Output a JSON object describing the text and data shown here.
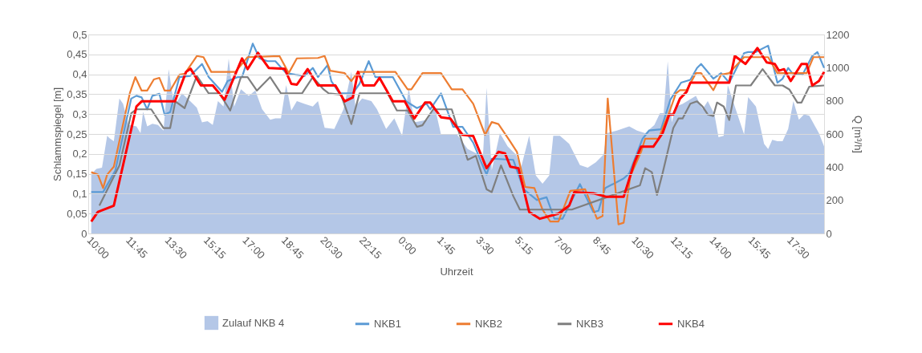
{
  "chart_data": {
    "type": "line",
    "xlabel": "Uhrzeit",
    "ylabel": "Schlammspiegel [m]",
    "y2label": "Q [m³/h]",
    "xlim": [
      "2000-01-01T10:00",
      "2000-01-02T19:06"
    ],
    "xticks": [
      {
        "value": "2000-01-01T10:00",
        "label": "10:00"
      },
      {
        "value": "2000-01-01T11:45",
        "label": "11:45"
      },
      {
        "value": "2000-01-01T13:30",
        "label": "13:30"
      },
      {
        "value": "2000-01-01T15:15",
        "label": "15:15"
      },
      {
        "value": "2000-01-01T17:00",
        "label": "17:00"
      },
      {
        "value": "2000-01-01T18:45",
        "label": "18:45"
      },
      {
        "value": "2000-01-01T20:30",
        "label": "20:30"
      },
      {
        "value": "2000-01-01T22:15",
        "label": "22:15"
      },
      {
        "value": "2000-01-02T00:00",
        "label": "0:00"
      },
      {
        "value": "2000-01-02T01:45",
        "label": "1:45"
      },
      {
        "value": "2000-01-02T03:30",
        "label": "3:30"
      },
      {
        "value": "2000-01-02T05:15",
        "label": "5:15"
      },
      {
        "value": "2000-01-02T07:00",
        "label": "7:00"
      },
      {
        "value": "2000-01-02T08:45",
        "label": "8:45"
      },
      {
        "value": "2000-01-02T10:30",
        "label": "10:30"
      },
      {
        "value": "2000-01-02T12:15",
        "label": "12:15"
      },
      {
        "value": "2000-01-02T14:00",
        "label": "14:00"
      },
      {
        "value": "2000-01-02T15:45",
        "label": "15:45"
      },
      {
        "value": "2000-01-02T17:30",
        "label": "17:30"
      }
    ],
    "ylim": [
      0,
      0.5
    ],
    "yticks": [
      0,
      {
        "value": 0.05,
        "label": "0,05"
      },
      {
        "value": 0.1,
        "label": "0,1"
      },
      {
        "value": 0.15,
        "label": "0,15"
      },
      {
        "value": 0.2,
        "label": "0,2"
      },
      {
        "value": 0.25,
        "label": "0,25"
      },
      {
        "value": 0.3,
        "label": "0,3"
      },
      {
        "value": 0.35,
        "label": "0,35"
      },
      {
        "value": 0.4,
        "label": "0,4"
      },
      {
        "value": 0.45,
        "label": "0,45"
      },
      {
        "value": 0.5,
        "label": "0,5"
      }
    ],
    "y2lim": [
      0,
      1200
    ],
    "y2ticks": [
      0,
      200,
      400,
      600,
      800,
      1000,
      1200
    ],
    "grid": "y",
    "legend": "bottom",
    "series": [
      {
        "name": "Zulauf NKB 4",
        "type": "area",
        "axis": "y2",
        "color": "#b4c7e7",
        "x": [
          "2000-01-01T10:08",
          "2000-01-01T10:22",
          "2000-01-01T10:37",
          "2000-01-01T10:51",
          "2000-01-01T10:58",
          "2000-01-01T11:09",
          "2000-01-01T11:24",
          "2000-01-01T11:34",
          "2000-01-01T11:49",
          "2000-01-01T12:10",
          "2000-01-01T12:21",
          "2000-01-01T12:28",
          "2000-01-01T12:39",
          "2000-01-01T12:53",
          "2000-01-01T13:08",
          "2000-01-01T13:23",
          "2000-01-01T13:37",
          "2000-01-01T13:52",
          "2000-01-01T14:13",
          "2000-01-01T14:35",
          "2000-01-01T14:53",
          "2000-01-01T15:07",
          "2000-01-01T15:22",
          "2000-01-01T15:36",
          "2000-01-01T15:50",
          "2000-01-01T16:05",
          "2000-01-01T16:19",
          "2000-01-01T16:34",
          "2000-01-01T16:52",
          "2000-01-01T17:13",
          "2000-01-01T17:31",
          "2000-01-01T17:49",
          "2000-01-01T18:11",
          "2000-01-01T18:25",
          "2000-01-01T18:40",
          "2000-01-01T18:54",
          "2000-01-01T19:08",
          "2000-01-01T19:23",
          "2000-01-01T19:44",
          "2000-01-01T20:06",
          "2000-01-01T20:20",
          "2000-01-01T20:38",
          "2000-01-01T21:04",
          "2000-01-01T21:29",
          "2000-01-01T21:50",
          "2000-01-01T22:01",
          "2000-01-01T22:19",
          "2000-01-01T22:44",
          "2000-01-01T22:59",
          "2000-01-01T23:24",
          "2000-01-01T23:46",
          "2000-01-02T00:07",
          "2000-01-02T00:25",
          "2000-01-02T00:40",
          "2000-01-02T01:16",
          "2000-01-02T01:34",
          "2000-01-02T01:52",
          "2000-01-02T02:35",
          "2000-01-02T03:04",
          "2000-01-02T03:33",
          "2000-01-02T03:44",
          "2000-01-02T03:55",
          "2000-01-02T04:09",
          "2000-01-02T04:31",
          "2000-01-02T04:52",
          "2000-01-02T05:14",
          "2000-01-02T05:28",
          "2000-01-02T05:50",
          "2000-01-02T06:08",
          "2000-01-02T06:26",
          "2000-01-02T06:44",
          "2000-01-02T06:55",
          "2000-01-02T07:13",
          "2000-01-02T07:38",
          "2000-01-02T08:07",
          "2000-01-02T08:28",
          "2000-01-02T08:50",
          "2000-01-02T09:11",
          "2000-01-02T09:19",
          "2000-01-02T09:47",
          "2000-01-02T10:20",
          "2000-01-02T10:41",
          "2000-01-02T11:03",
          "2000-01-02T11:28",
          "2000-01-02T11:43",
          "2000-01-02T11:53",
          "2000-01-02T12:04",
          "2000-01-02T12:15",
          "2000-01-02T12:26",
          "2000-01-02T12:44",
          "2000-01-02T13:20",
          "2000-01-02T13:38",
          "2000-01-02T13:52",
          "2000-01-02T14:10",
          "2000-01-02T14:21",
          "2000-01-02T14:35",
          "2000-01-02T14:46",
          "2000-01-02T15:05",
          "2000-01-02T15:30",
          "2000-01-02T15:41",
          "2000-01-02T16:02",
          "2000-01-02T16:24",
          "2000-01-02T16:35",
          "2000-01-02T16:46",
          "2000-01-02T17:00",
          "2000-01-02T17:14",
          "2000-01-02T17:29",
          "2000-01-02T17:43",
          "2000-01-02T17:58",
          "2000-01-02T18:12",
          "2000-01-02T18:26",
          "2000-01-02T18:52",
          "2000-01-02T19:06"
        ],
        "values": [
          357,
          389,
          397,
          589,
          573,
          557,
          814,
          782,
          654,
          646,
          605,
          734,
          646,
          662,
          654,
          621,
          991,
          766,
          846,
          798,
          758,
          670,
          678,
          654,
          798,
          766,
          1055,
          766,
          870,
          830,
          862,
          750,
          686,
          694,
          694,
          895,
          742,
          798,
          782,
          766,
          798,
          637,
          630,
          750,
          975,
          766,
          814,
          798,
          750,
          630,
          694,
          589,
          878,
          670,
          686,
          774,
          597,
          597,
          509,
          477,
          413,
          878,
          381,
          605,
          525,
          477,
          397,
          589,
          349,
          300,
          349,
          589,
          589,
          541,
          413,
          397,
          429,
          477,
          605,
          621,
          646,
          621,
          605,
          654,
          726,
          726,
          1039,
          670,
          766,
          782,
          830,
          750,
          798,
          718,
          581,
          589,
          895,
          766,
          597,
          822,
          766,
          541,
          509,
          565,
          557,
          557,
          630,
          798,
          686,
          718,
          710,
          605,
          525
        ]
      },
      {
        "name": "NKB1",
        "color": "#5b9bd5",
        "x": [
          "2000-01-01T10:08",
          "2000-01-01T10:40",
          "2000-01-01T11:13",
          "2000-01-01T11:56",
          "2000-01-01T12:10",
          "2000-01-01T12:24",
          "2000-01-01T12:39",
          "2000-01-01T12:53",
          "2000-01-01T13:12",
          "2000-01-01T13:26",
          "2000-01-01T13:41",
          "2000-01-01T14:06",
          "2000-01-01T14:35",
          "2000-01-01T15:07",
          "2000-01-01T15:25",
          "2000-01-01T16:01",
          "2000-01-01T16:16",
          "2000-01-01T16:44",
          "2000-01-01T16:55",
          "2000-01-01T17:24",
          "2000-01-01T17:42",
          "2000-01-01T18:04",
          "2000-01-01T18:25",
          "2000-01-01T18:54",
          "2000-01-01T19:19",
          "2000-01-01T19:44",
          "2000-01-01T20:06",
          "2000-01-01T20:20",
          "2000-01-01T20:46",
          "2000-01-01T20:56",
          "2000-01-01T21:18",
          "2000-01-01T21:54",
          "2000-01-01T22:12",
          "2000-01-01T22:37",
          "2000-01-01T22:55",
          "2000-01-01T23:42",
          "2000-01-02T00:18",
          "2000-01-02T00:47",
          "2000-01-02T01:13",
          "2000-01-02T01:23",
          "2000-01-02T01:52",
          "2000-01-02T02:25",
          "2000-01-02T02:50",
          "2000-01-02T03:19",
          "2000-01-02T03:55",
          "2000-01-02T04:09",
          "2000-01-02T05:07",
          "2000-01-02T05:35",
          "2000-01-02T06:11",
          "2000-01-02T06:37",
          "2000-01-02T06:58",
          "2000-01-02T07:20",
          "2000-01-02T08:07",
          "2000-01-02T08:43",
          "2000-01-02T08:57",
          "2000-01-02T09:15",
          "2000-01-02T10:05",
          "2000-01-02T10:20",
          "2000-01-02T10:56",
          "2000-01-02T11:14",
          "2000-01-02T11:46",
          "2000-01-02T12:11",
          "2000-01-02T12:40",
          "2000-01-02T13:05",
          "2000-01-02T13:23",
          "2000-01-02T13:34",
          "2000-01-02T14:07",
          "2000-01-02T14:28",
          "2000-01-02T14:50",
          "2000-01-02T15:30",
          "2000-01-02T15:41",
          "2000-01-02T16:02",
          "2000-01-02T16:35",
          "2000-01-02T17:00",
          "2000-01-02T17:14",
          "2000-01-02T17:29",
          "2000-01-02T17:40",
          "2000-01-02T18:08",
          "2000-01-02T18:34",
          "2000-01-02T18:48",
          "2000-01-02T19:06"
        ],
        "values": [
          0.104,
          0.104,
          0.158,
          0.339,
          0.346,
          0.342,
          0.312,
          0.346,
          0.351,
          0.299,
          0.305,
          0.393,
          0.396,
          0.426,
          0.393,
          0.356,
          0.383,
          0.393,
          0.393,
          0.477,
          0.44,
          0.433,
          0.433,
          0.403,
          0.399,
          0.396,
          0.416,
          0.393,
          0.423,
          0.383,
          0.352,
          0.352,
          0.376,
          0.433,
          0.393,
          0.393,
          0.332,
          0.315,
          0.326,
          0.312,
          0.352,
          0.268,
          0.268,
          0.228,
          0.148,
          0.188,
          0.185,
          0.111,
          0.084,
          0.091,
          0.037,
          0.037,
          0.124,
          0.054,
          0.057,
          0.114,
          0.138,
          0.151,
          0.238,
          0.259,
          0.262,
          0.336,
          0.379,
          0.386,
          0.416,
          0.426,
          0.389,
          0.403,
          0.379,
          0.453,
          0.456,
          0.456,
          0.472,
          0.379,
          0.389,
          0.416,
          0.403,
          0.399,
          0.446,
          0.456,
          0.416
        ]
      },
      {
        "name": "NKB2",
        "color": "#ed7d31",
        "x": [
          "2000-01-01T10:08",
          "2000-01-01T10:26",
          "2000-01-01T10:40",
          "2000-01-01T10:51",
          "2000-01-01T11:09",
          "2000-01-01T11:52",
          "2000-01-01T12:07",
          "2000-01-01T12:24",
          "2000-01-01T12:39",
          "2000-01-01T12:57",
          "2000-01-01T13:12",
          "2000-01-01T13:26",
          "2000-01-01T13:41",
          "2000-01-01T14:06",
          "2000-01-01T14:20",
          "2000-01-01T14:53",
          "2000-01-01T15:11",
          "2000-01-01T15:32",
          "2000-01-01T16:37",
          "2000-01-01T17:10",
          "2000-01-01T18:36",
          "2000-01-01T19:01",
          "2000-01-01T19:23",
          "2000-01-01T20:20",
          "2000-01-01T20:38",
          "2000-01-01T20:53",
          "2000-01-01T21:32",
          "2000-01-01T21:50",
          "2000-01-01T22:08",
          "2000-01-01T23:49",
          "2000-01-02T00:22",
          "2000-01-02T00:32",
          "2000-01-02T01:02",
          "2000-01-02T01:52",
          "2000-01-02T02:21",
          "2000-01-02T02:50",
          "2000-01-02T03:19",
          "2000-01-02T03:51",
          "2000-01-02T04:09",
          "2000-01-02T04:27",
          "2000-01-02T04:56",
          "2000-01-02T05:17",
          "2000-01-02T05:39",
          "2000-01-02T06:04",
          "2000-01-02T06:26",
          "2000-01-02T06:47",
          "2000-01-02T07:09",
          "2000-01-02T07:41",
          "2000-01-02T08:21",
          "2000-01-02T08:53",
          "2000-01-02T09:08",
          "2000-01-02T09:22",
          "2000-01-02T09:51",
          "2000-01-02T10:05",
          "2000-01-02T10:23",
          "2000-01-02T10:52",
          "2000-01-02T11:03",
          "2000-01-02T11:39",
          "2000-01-02T12:11",
          "2000-01-02T12:26",
          "2000-01-02T12:37",
          "2000-01-02T12:55",
          "2000-01-02T13:20",
          "2000-01-02T13:34",
          "2000-01-02T14:07",
          "2000-01-02T14:28",
          "2000-01-02T14:50",
          "2000-01-02T15:30",
          "2000-01-02T16:35",
          "2000-01-02T17:00",
          "2000-01-02T18:19",
          "2000-01-02T18:37",
          "2000-01-02T19:06"
        ],
        "values": [
          0.154,
          0.148,
          0.114,
          0.148,
          0.168,
          0.352,
          0.393,
          0.359,
          0.359,
          0.387,
          0.391,
          0.359,
          0.359,
          0.399,
          0.401,
          0.446,
          0.443,
          0.406,
          0.406,
          0.443,
          0.446,
          0.403,
          0.44,
          0.441,
          0.446,
          0.409,
          0.403,
          0.383,
          0.406,
          0.406,
          0.362,
          0.362,
          0.403,
          0.403,
          0.362,
          0.362,
          0.326,
          0.248,
          0.28,
          0.275,
          0.235,
          0.205,
          0.117,
          0.114,
          0.06,
          0.03,
          0.03,
          0.107,
          0.111,
          0.037,
          0.044,
          0.339,
          0.023,
          0.027,
          0.144,
          0.205,
          0.238,
          0.238,
          0.312,
          0.352,
          0.36,
          0.36,
          0.403,
          0.403,
          0.36,
          0.399,
          0.403,
          0.443,
          0.443,
          0.403,
          0.403,
          0.443,
          0.443
        ]
      },
      {
        "name": "NKB3",
        "color": "#7f7f7f",
        "x": [
          "2000-01-01T10:30",
          "2000-01-01T11:24",
          "2000-01-01T11:56",
          "2000-01-01T12:10",
          "2000-01-01T12:50",
          "2000-01-01T13:23",
          "2000-01-01T13:41",
          "2000-01-01T13:55",
          "2000-01-01T14:20",
          "2000-01-01T14:53",
          "2000-01-01T15:25",
          "2000-01-01T15:54",
          "2000-01-01T16:23",
          "2000-01-01T16:52",
          "2000-01-01T17:10",
          "2000-01-01T17:35",
          "2000-01-01T18:11",
          "2000-01-01T18:40",
          "2000-01-01T19:37",
          "2000-01-01T20:06",
          "2000-01-01T20:35",
          "2000-01-01T20:49",
          "2000-01-01T21:22",
          "2000-01-01T21:50",
          "2000-01-01T22:12",
          "2000-01-01T23:28",
          "2000-01-01T23:53",
          "2000-01-02T00:22",
          "2000-01-02T00:47",
          "2000-01-02T01:02",
          "2000-01-02T01:31",
          "2000-01-02T02:21",
          "2000-01-02T03:04",
          "2000-01-02T03:26",
          "2000-01-02T03:55",
          "2000-01-02T04:09",
          "2000-01-02T04:34",
          "2000-01-02T05:07",
          "2000-01-02T05:25",
          "2000-01-02T07:45",
          "2000-01-02T09:19",
          "2000-01-02T10:49",
          "2000-01-02T11:03",
          "2000-01-02T11:21",
          "2000-01-02T11:35",
          "2000-01-02T11:50",
          "2000-01-02T12:19",
          "2000-01-02T12:33",
          "2000-01-02T12:44",
          "2000-01-02T13:05",
          "2000-01-02T13:23",
          "2000-01-02T13:38",
          "2000-01-02T13:52",
          "2000-01-02T14:07",
          "2000-01-02T14:17",
          "2000-01-02T14:35",
          "2000-01-02T14:50",
          "2000-01-02T15:08",
          "2000-01-02T15:48",
          "2000-01-02T16:20",
          "2000-01-02T16:53",
          "2000-01-02T17:14",
          "2000-01-02T17:32",
          "2000-01-02T17:54",
          "2000-01-02T18:05",
          "2000-01-02T18:26",
          "2000-01-02T19:06"
        ],
        "values": [
          0.07,
          0.171,
          0.302,
          0.312,
          0.312,
          0.265,
          0.265,
          0.332,
          0.315,
          0.396,
          0.352,
          0.352,
          0.309,
          0.393,
          0.393,
          0.359,
          0.393,
          0.352,
          0.352,
          0.393,
          0.362,
          0.352,
          0.349,
          0.275,
          0.352,
          0.352,
          0.309,
          0.309,
          0.268,
          0.272,
          0.312,
          0.312,
          0.185,
          0.195,
          0.111,
          0.104,
          0.171,
          0.094,
          0.06,
          0.06,
          0.091,
          0.121,
          0.164,
          0.154,
          0.097,
          0.151,
          0.265,
          0.289,
          0.289,
          0.326,
          0.332,
          0.319,
          0.299,
          0.295,
          0.329,
          0.319,
          0.285,
          0.372,
          0.372,
          0.413,
          0.372,
          0.372,
          0.362,
          0.329,
          0.329,
          0.369,
          0.372
        ]
      },
      {
        "name": "NKB4",
        "color": "#ff0000",
        "x": [
          "2000-01-01T10:08",
          "2000-01-01T10:26",
          "2000-01-01T11:09",
          "2000-01-01T12:10",
          "2000-01-01T12:24",
          "2000-01-01T13:54",
          "2000-01-01T14:24",
          "2000-01-01T14:36",
          "2000-01-01T15:04",
          "2000-01-01T15:36",
          "2000-01-01T16:08",
          "2000-01-01T16:55",
          "2000-01-01T17:10",
          "2000-01-01T17:38",
          "2000-01-01T18:07",
          "2000-01-01T18:50",
          "2000-01-01T19:08",
          "2000-01-01T19:23",
          "2000-01-01T19:52",
          "2000-01-01T20:20",
          "2000-01-01T21:07",
          "2000-01-01T21:32",
          "2000-01-01T21:54",
          "2000-01-01T22:08",
          "2000-01-01T22:23",
          "2000-01-01T22:52",
          "2000-01-01T23:06",
          "2000-01-01T23:42",
          "2000-01-02T00:14",
          "2000-01-02T00:40",
          "2000-01-02T01:09",
          "2000-01-02T01:23",
          "2000-01-02T01:52",
          "2000-01-02T02:17",
          "2000-01-02T02:50",
          "2000-01-02T03:19",
          "2000-01-02T03:55",
          "2000-01-02T04:27",
          "2000-01-02T04:45",
          "2000-01-02T04:59",
          "2000-01-02T05:21",
          "2000-01-02T05:50",
          "2000-01-02T06:19",
          "2000-01-02T07:09",
          "2000-01-02T07:38",
          "2000-01-02T07:52",
          "2000-01-02T08:43",
          "2000-01-02T09:19",
          "2000-01-02T10:05",
          "2000-01-02T10:34",
          "2000-01-02T10:52",
          "2000-01-02T11:25",
          "2000-01-02T11:50",
          "2000-01-02T12:08",
          "2000-01-02T12:19",
          "2000-01-02T12:37",
          "2000-01-02T12:55",
          "2000-01-02T13:05",
          "2000-01-02T14:50",
          "2000-01-02T15:05",
          "2000-01-02T15:34",
          "2000-01-02T16:06",
          "2000-01-02T16:31",
          "2000-01-02T16:53",
          "2000-01-02T17:04",
          "2000-01-02T17:18",
          "2000-01-02T17:36",
          "2000-01-02T18:05",
          "2000-01-02T18:19",
          "2000-01-02T18:34",
          "2000-01-02T18:52",
          "2000-01-02T19:06"
        ],
        "values": [
          0.03,
          0.054,
          0.07,
          0.319,
          0.332,
          0.332,
          0.406,
          0.414,
          0.372,
          0.372,
          0.336,
          0.44,
          0.413,
          0.454,
          0.416,
          0.414,
          0.376,
          0.374,
          0.413,
          0.372,
          0.372,
          0.332,
          0.342,
          0.406,
          0.372,
          0.372,
          0.391,
          0.332,
          0.332,
          0.289,
          0.329,
          0.329,
          0.292,
          0.289,
          0.248,
          0.245,
          0.164,
          0.205,
          0.201,
          0.168,
          0.164,
          0.054,
          0.037,
          0.05,
          0.07,
          0.104,
          0.101,
          0.092,
          0.092,
          0.178,
          0.218,
          0.218,
          0.252,
          0.299,
          0.299,
          0.339,
          0.356,
          0.379,
          0.379,
          0.446,
          0.426,
          0.466,
          0.43,
          0.426,
          0.409,
          0.413,
          0.383,
          0.426,
          0.426,
          0.372,
          0.383,
          0.406
        ]
      }
    ]
  }
}
